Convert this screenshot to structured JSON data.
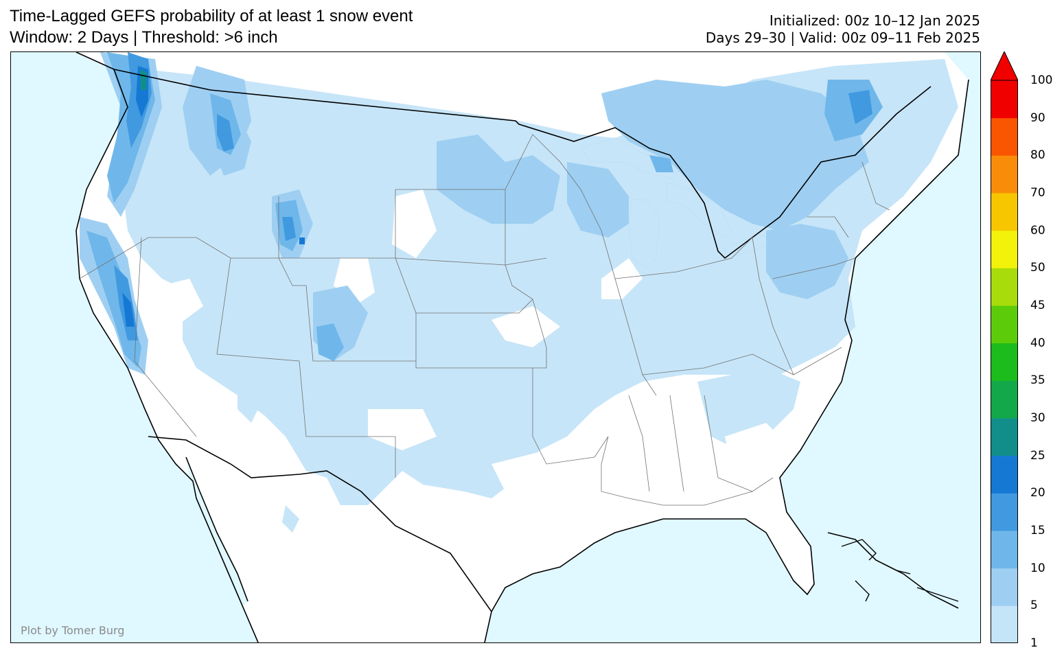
{
  "header": {
    "title_line1": "Time-Lagged GEFS probability of at least 1 snow event",
    "title_line2": "Window: 2 Days | Threshold: >6 inch",
    "init_line": "Initialized: 00z 10–12 Jan 2025",
    "valid_line": "Days 29–30 | Valid: 00z 09–11 Feb 2025"
  },
  "map": {
    "credit": "Plot by Tomer Burg",
    "ocean_color": "#e0f8ff",
    "land_color": "#ffffff"
  },
  "colorbar": {
    "levels": [
      "1",
      "5",
      "10",
      "15",
      "20",
      "25",
      "30",
      "35",
      "40",
      "45",
      "50",
      "60",
      "70",
      "80",
      "90",
      "100"
    ],
    "colors": [
      "#c4e4f8",
      "#9ecff2",
      "#6fb7ea",
      "#4199e0",
      "#1579d4",
      "#118e8a",
      "#13a84a",
      "#1cbc1c",
      "#5ccc0a",
      "#a8dc0a",
      "#f2f20a",
      "#f7c600",
      "#f98d0a",
      "#fa5500",
      "#f10000"
    ],
    "extend_color": "#f10000"
  }
}
